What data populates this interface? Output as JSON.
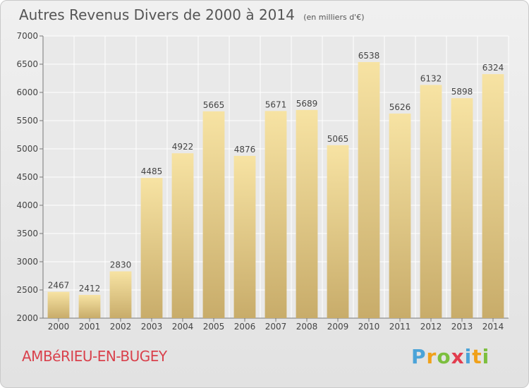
{
  "chart_data": {
    "type": "bar",
    "title": "Autres Revenus Divers de 2000 à 2014",
    "subtitle": "(en milliers d'€)",
    "categories": [
      "2000",
      "2001",
      "2002",
      "2003",
      "2004",
      "2005",
      "2006",
      "2007",
      "2008",
      "2009",
      "2010",
      "2011",
      "2012",
      "2013",
      "2014"
    ],
    "values": [
      2467,
      2412,
      2830,
      4485,
      4922,
      5665,
      4876,
      5671,
      5689,
      5065,
      6538,
      5626,
      6132,
      5898,
      6324
    ],
    "ylim": [
      2000,
      7000
    ],
    "yticks": [
      2000,
      2500,
      3000,
      3500,
      4000,
      4500,
      5000,
      5500,
      6000,
      6500,
      7000
    ],
    "grid": true,
    "bar_color_top": "#f7e3a3",
    "bar_color_bottom": "#c8ac6a"
  },
  "footer": {
    "city": "AMBéRIEU-EN-BUGEY",
    "logo_letters": [
      "P",
      "r",
      "o",
      "x",
      "i",
      "t",
      "i"
    ],
    "logo_colors": [
      "#4aa3d8",
      "#f0a11a",
      "#7cbf3e",
      "#e23c4e",
      "#4aa3d8",
      "#f0a11a",
      "#7cbf3e"
    ]
  }
}
